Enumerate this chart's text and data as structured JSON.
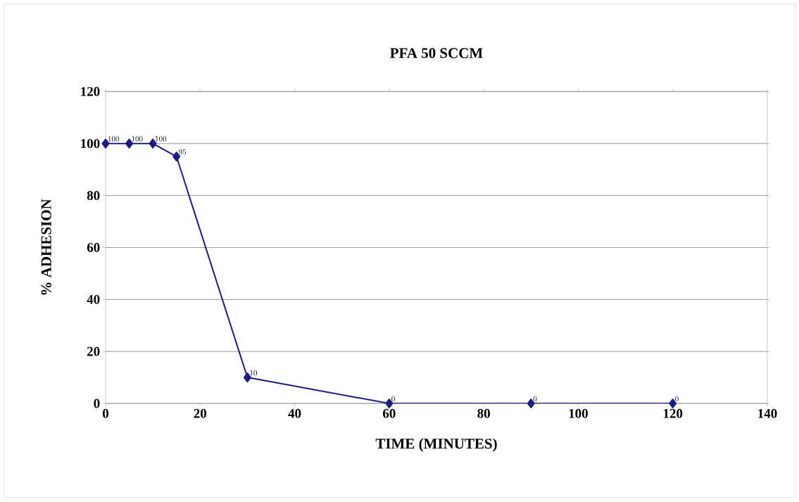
{
  "chart_data": {
    "type": "line",
    "title": "PFA 50 SCCM",
    "xlabel": "TIME (MINUTES)",
    "ylabel": "% ADHESION",
    "x": [
      0,
      5,
      10,
      15,
      30,
      60,
      90,
      120
    ],
    "values": [
      100,
      100,
      100,
      95,
      10,
      0,
      0,
      0
    ],
    "color": "#1c1c84",
    "xlim": [
      0,
      140
    ],
    "xticks": [
      0,
      20,
      40,
      60,
      80,
      100,
      120,
      140
    ],
    "ylim": [
      0,
      120
    ],
    "yticks": [
      0,
      20,
      40,
      60,
      80,
      100,
      120
    ],
    "grid": "y",
    "marker": "diamond",
    "line_style": "solid",
    "data_labels": true
  }
}
